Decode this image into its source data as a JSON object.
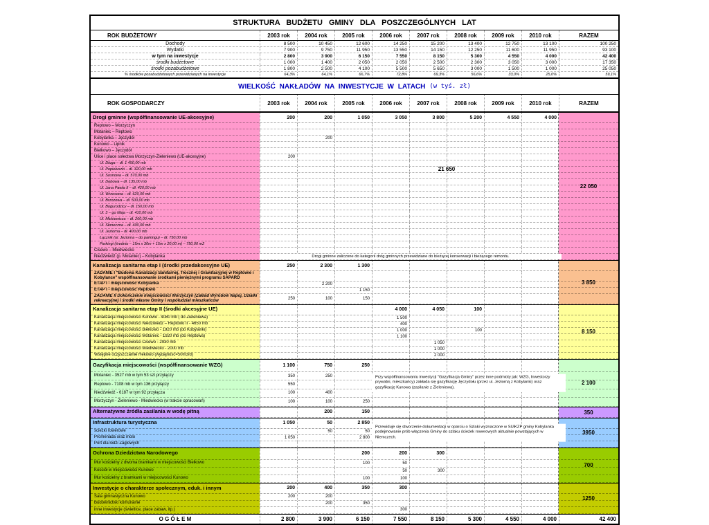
{
  "page_title": "STRUKTURA BUDŻETU GMINY DLA POSZCZEGÓLNYCH LAT",
  "investments_title": "WIELKOŚĆ NAKŁADÓW NA INWESTYCJE W LATACH",
  "investments_title_suffix": "(w tyś. zł)",
  "colors": {
    "investments_title": "#0000bb",
    "drogi": "#ff99cc",
    "kanalizacja_1": "#fac090",
    "kanalizacja_2": "#ffff99",
    "gazyfikacja": "#ccffcc",
    "woda": "#cc99ff",
    "turystyka": "#99ccff",
    "dziedzictwo": "#99cc00",
    "spoleczne": "#c3cc00"
  },
  "years": [
    "2003 rok",
    "2004 rok",
    "2005 rok",
    "2006 rok",
    "2007 rok",
    "2008 rok",
    "2009 rok",
    "2010 rok"
  ],
  "razem_label": "RAZEM",
  "gospodarczy_label": "ROK GOSPODARCZY",
  "budget": {
    "header_label": "ROK BUDŻETOWY",
    "rows": [
      {
        "label": "Dochody",
        "style": "plain",
        "values": [
          "8 500",
          "10 450",
          "12 600",
          "14 250",
          "15 200",
          "13 400",
          "12 750",
          "13 100"
        ],
        "razem": "100 250"
      },
      {
        "label": "Wydatki",
        "style": "plain",
        "values": [
          "7 900",
          "9 750",
          "11 950",
          "13 550",
          "14 150",
          "12 250",
          "11 600",
          "11 950"
        ],
        "razem": "93 100"
      },
      {
        "label": "w tym na inwestycje",
        "style": "bold",
        "values": [
          "2 800",
          "3 900",
          "6 150",
          "7 550",
          "8 150",
          "5 300",
          "4 550",
          "4 000"
        ],
        "razem": "42 400"
      },
      {
        "label": "środki budżetowe",
        "style": "italic",
        "values": [
          "1 000",
          "1 400",
          "2 050",
          "2 050",
          "2 500",
          "2 300",
          "3 050",
          "3 000"
        ],
        "razem": "17 350"
      },
      {
        "label": "środki pozabudżetowe",
        "style": "italic",
        "values": [
          "1 800",
          "2 500",
          "4 100",
          "5 500",
          "5 650",
          "3 000",
          "1 500",
          "1 000"
        ],
        "razem": "25 050"
      },
      {
        "label": "% środków pozabudżetowych przewidzianych na inwestycje",
        "style": "small-italic",
        "values": [
          "64,3%",
          "64,1%",
          "66,7%",
          "72,8%",
          "69,3%",
          "56,6%",
          "33,0%",
          "25,0%"
        ],
        "razem": "59,1%"
      }
    ]
  },
  "sections": [
    {
      "id": "drogi",
      "color": "#ff99cc",
      "header": {
        "label": "Drogi gminne (współfinansowanie UE-akcesyjne)",
        "values": [
          "200",
          "200",
          "1 050",
          "3 050",
          "3 800",
          "5 200",
          "4 550",
          "4 000"
        ]
      },
      "razem": "22 050",
      "rows": [
        {
          "label": "Reptowo – Morzyczyn",
          "style": "road",
          "values": [
            "",
            "",
            "",
            "",
            "",
            "",
            "",
            ""
          ]
        },
        {
          "label": "Motaniec – Reptowo",
          "style": "road",
          "values": [
            "",
            "",
            "",
            "",
            "",
            "",
            "",
            ""
          ]
        },
        {
          "label": "Kobylanka – Jęczydół",
          "style": "road",
          "values": [
            "",
            "200",
            "",
            "",
            "",
            "",
            "",
            ""
          ]
        },
        {
          "label": "Kunowo – Lipnik",
          "style": "road",
          "values": [
            "",
            "",
            "",
            "",
            "",
            "",
            "",
            ""
          ]
        },
        {
          "label": "Bielkowo – Jęczydół",
          "style": "road",
          "values": [
            "",
            "",
            "",
            "",
            "",
            "",
            "",
            ""
          ]
        },
        {
          "label": "Ulice i place sołectwa Morzyczyn-Zieleniewo (UE-akcesyjne)",
          "style": "road",
          "values": [
            "200",
            "",
            "",
            "",
            "",
            "",
            "",
            ""
          ]
        },
        {
          "label": "Ul. Długa – dł. 1 450,00 mb",
          "style": "street",
          "values": [
            "",
            "",
            "",
            "",
            "",
            "",
            "",
            ""
          ]
        },
        {
          "label": "Ul. Popiełuszki – dł. 320,00 mb",
          "style": "street",
          "values": [
            "",
            "",
            "",
            "",
            "",
            "",
            "",
            ""
          ]
        },
        {
          "label": "Ul. Sosnowa – dł. 570,00 mb",
          "style": "street",
          "values": [
            "",
            "",
            "",
            "",
            "",
            "",
            "",
            ""
          ]
        },
        {
          "label": "Ul. Dębowa – dł. 135,00 mb",
          "style": "street",
          "values": [
            "",
            "",
            "",
            "",
            "",
            "",
            "",
            ""
          ]
        },
        {
          "label": "Ul. Jana Pawła II – dł. 420,00 mb",
          "style": "street",
          "values": [
            "",
            "",
            "",
            "",
            "",
            "",
            "",
            ""
          ]
        },
        {
          "label": "Ul. Wrzosowa – dł. 620,00 mb",
          "style": "street",
          "values": [
            "",
            "",
            "",
            "",
            "",
            "",
            "",
            ""
          ]
        },
        {
          "label": "Ul. Brzozowa – dł. 500,00 mb",
          "style": "street",
          "values": [
            "",
            "",
            "",
            "",
            "",
            "",
            "",
            ""
          ]
        },
        {
          "label": "Ul. Bogurodzicy – dł. 150,00 mb",
          "style": "street",
          "values": [
            "",
            "",
            "",
            "",
            "",
            "",
            "",
            ""
          ]
        },
        {
          "label": "Ul. 3 – go Maja – dł. 410,00 mb",
          "style": "street",
          "values": [
            "",
            "",
            "",
            "",
            "",
            "",
            "",
            ""
          ]
        },
        {
          "label": "Ul. Mickiewicza – dł. 260,00 mb",
          "style": "street",
          "values": [
            "",
            "",
            "",
            "",
            "",
            "",
            "",
            ""
          ]
        },
        {
          "label": "Ul. Słoneczna – dł. 400,00 mb",
          "style": "street",
          "values": [
            "",
            "",
            "",
            "",
            "",
            "",
            "",
            ""
          ]
        },
        {
          "label": "Ul. Jeziorna – dł. 400,00 mb",
          "style": "street",
          "values": [
            "",
            "",
            "",
            "",
            "",
            "",
            "",
            ""
          ]
        },
        {
          "label": "Łącznik (ul. Jeziorna – do parkingu) – dł. 750,00 mb",
          "style": "street",
          "values": [
            "",
            "",
            "",
            "",
            "",
            "",
            "",
            ""
          ]
        },
        {
          "label": "Parkingi (średnio – 15m x 30m + 15m x 20,00 m) – 750,00 m2",
          "style": "street",
          "values": [
            "",
            "",
            "",
            "",
            "",
            "",
            "",
            ""
          ]
        },
        {
          "label": "Cisewo – Miedwiecko",
          "style": "road",
          "values": [
            "",
            "",
            "",
            "",
            "",
            "",
            "",
            ""
          ]
        },
        {
          "label": "Niedźwiedź (p. Motaniec) – Kobylanka",
          "style": "road",
          "values": [
            "",
            "",
            "",
            "",
            "",
            "",
            "",
            ""
          ]
        }
      ],
      "overlays": [
        {
          "kind": "big",
          "text": "21 650",
          "col": 2,
          "span": 6
        },
        {
          "kind": "note-bottom",
          "text": "Drogi gminne zaliczone do kategorii dróg gminnych przewidziane do bieżącej konserwacji i bieżącego remontu.",
          "col": 0,
          "span": 8
        }
      ]
    },
    {
      "id": "kan1",
      "color": "#fac090",
      "header": {
        "label": "Kanalizacja sanitarna etap I (środki przedakcesyjne UE)",
        "values": [
          "250",
          "2 300",
          "1 300",
          "",
          "",
          "",
          "",
          ""
        ]
      },
      "razem": "3 850",
      "rows": [
        {
          "label": "ZADANIE I \"Budowa Kanalizacji Sanitarnej, Tłocznej i Grawitacyjnej w Reptowie i Kobylance\" współfinansowanie środkami pieniężnymi programu SAPARD",
          "style": "bold",
          "values": [
            "",
            "",
            "",
            "",
            "",
            "",
            "",
            ""
          ]
        },
        {
          "label": "ETAP I - miejscowość Kobylanka",
          "style": "bold",
          "values": [
            "",
            "2 200",
            "",
            "",
            "",
            "",
            "",
            ""
          ]
        },
        {
          "label": "ETAP I - miejscowość Reptowo",
          "style": "bold",
          "values": [
            "",
            "",
            "1 150",
            "",
            "",
            "",
            "",
            ""
          ]
        },
        {
          "label": "ZADANIE II Dokończenie miejscowości Morzyczyn (Zakład Wyrobów Napoj, Działki rekreacyjne) i środki własne Gminy i współudział mieszkańców",
          "style": "bold-italic",
          "values": [
            "250",
            "100",
            "150",
            "",
            "",
            "",
            "",
            ""
          ]
        }
      ],
      "overlays": []
    },
    {
      "id": "kan2",
      "color": "#ffff99",
      "header": {
        "label": "Kanalizacja sanitarna etap II (środki akcesyjne UE)",
        "values": [
          "",
          "",
          "",
          "4 000",
          "4 050",
          "100",
          "",
          ""
        ]
      },
      "razem": "8 150",
      "rows": [
        {
          "label": "Kanalizacja miejscowości Kunowo - 4080 mb ( do Zieleniewa)",
          "style": "plain",
          "values": [
            "",
            "",
            "",
            "1 500",
            "",
            "",
            "",
            ""
          ]
        },
        {
          "label": "Kanalizacja miejscowości Niedźwiedź – Reptowo II - 4650 mb",
          "style": "plain",
          "values": [
            "",
            "",
            "",
            "400",
            "",
            "",
            "",
            ""
          ]
        },
        {
          "label": "Kanalizacja miejscowości Bielkowo - 1920 mb (do Kobylanki)",
          "style": "plain",
          "values": [
            "",
            "",
            "",
            "1 000",
            "",
            "100",
            "",
            ""
          ]
        },
        {
          "label": "Kanalizacja miejscowości Motaniec - 1920 mb (do Reptowa)",
          "style": "plain",
          "values": [
            "",
            "",
            "",
            "1 100",
            "",
            "",
            "",
            ""
          ]
        },
        {
          "label": "Kanalizacja miejscowości Cisewo - 2930 mb",
          "style": "plain",
          "values": [
            "",
            "",
            "",
            "",
            "1 050",
            "",
            "",
            ""
          ]
        },
        {
          "label": "Kanalizacja miejscowości Miedwiecko - 2000 mb",
          "style": "plain",
          "values": [
            "",
            "",
            "",
            "",
            "1 000",
            "",
            "",
            ""
          ]
        },
        {
          "label": "Wstępne oczyszczalnie Rekowo (wydajność=50m3/d)",
          "style": "plain",
          "values": [
            "",
            "",
            "",
            "",
            "2 000",
            "",
            "",
            ""
          ]
        }
      ],
      "overlays": []
    },
    {
      "id": "gaz",
      "color": "#ccffcc",
      "header": {
        "label": "Gazyfikacja miejscowości (współfinansowanie WZG)",
        "values": [
          "1 100",
          "750",
          "250",
          "",
          "",
          "",
          "",
          ""
        ]
      },
      "razem": "2 100",
      "rows": [
        {
          "label": "Motaniec - 3527 mb w tym 53 szt przyłączy",
          "style": "plain",
          "values": [
            "350",
            "250",
            "",
            "",
            "",
            "",
            "",
            ""
          ]
        },
        {
          "label": "Reptowo - 7108 mb w tym 136 przyłączy",
          "style": "plain",
          "values": [
            "550",
            "",
            "",
            "",
            "",
            "",
            "",
            ""
          ]
        },
        {
          "label": "Niedźwiedź - 6187 w tym 92 przyłącza",
          "style": "plain",
          "values": [
            "100",
            "400",
            "",
            "",
            "",
            "",
            "",
            ""
          ]
        },
        {
          "label": "Morzyczyn - Zieleniewo - Miedwiecko (w trakcie opracowań)",
          "style": "plain",
          "values": [
            "100",
            "100",
            "250",
            "",
            "",
            "",
            "",
            ""
          ]
        }
      ],
      "overlays": [
        {
          "kind": "note-middle",
          "text": "Przy współfinansowaniu inwestycji \"Gazyfikacja Gminy\" przez inne podmioty jak: WZG, Inwestorzy prywatni, mieszkańcy) zakłada się gazyfikację Jęczydołu (przez ul. Jeziorną z Kobylanki) oraz gazyfikację Kunowa (zasilanie z Zieleniewa).",
          "col": 3,
          "span": 5
        }
      ]
    },
    {
      "id": "woda",
      "color": "#cc99ff",
      "header": {
        "label": "Alternatywne źródła zasilania w wodę pitną",
        "values": [
          "",
          "200",
          "150",
          "",
          "",
          "",
          "",
          ""
        ]
      },
      "razem": "350",
      "rows": [],
      "overlays": []
    },
    {
      "id": "tur",
      "color": "#99ccff",
      "header": {
        "label": "Infrastruktura turystyczna",
        "values": [
          "1 050",
          "50",
          "2 850",
          "",
          "",
          "",
          "",
          ""
        ]
      },
      "razem": "3950",
      "rows": [
        {
          "label": "ścieżki rowerowe",
          "style": "plain",
          "values": [
            "",
            "50",
            "50",
            "",
            "",
            "",
            "",
            ""
          ]
        },
        {
          "label": "Promenada oraz molo",
          "style": "plain",
          "values": [
            "1 050",
            "",
            "2 800",
            "",
            "",
            "",
            "",
            ""
          ]
        },
        {
          "label": "Port dla łodzi Żaglowych",
          "style": "plain",
          "values": [
            "",
            "",
            "",
            "",
            "",
            "",
            "",
            ""
          ]
        }
      ],
      "overlays": [
        {
          "kind": "note-middle",
          "text": "Przewiduje się stworzenie dokumentacji w oparciu o Szlaki wyznaczone w SUiKZP gminy Kobylanka podejmowanie prób włączenia Gminy do szlaku ścieżek rowerowych aktualnie powstających w Niemczech.",
          "col": 3,
          "span": 5
        }
      ]
    },
    {
      "id": "dziedzictwo",
      "color": "#99cc00",
      "header": {
        "label": "Ochrona Dziedzictwa Narodowego",
        "values": [
          "",
          "",
          "200",
          "200",
          "300",
          "",
          "",
          ""
        ]
      },
      "razem": "700",
      "rows": [
        {
          "label": "Mur kościelny z dwoma bramkami w miejscowości Bielkowo",
          "style": "plain",
          "values": [
            "",
            "",
            "100",
            "50",
            "",
            "",
            "",
            ""
          ]
        },
        {
          "label": "Kościół w miejscowości Kunowo",
          "style": "plain",
          "values": [
            "",
            "",
            "",
            "50",
            "300",
            "",
            "",
            ""
          ]
        },
        {
          "label": "Mur kościelny z bramkami w miejscowości Kunowo",
          "style": "plain",
          "values": [
            "",
            "",
            "100",
            "100",
            "",
            "",
            "",
            ""
          ]
        }
      ],
      "overlays": []
    },
    {
      "id": "spol",
      "color": "#c3cc00",
      "header": {
        "label": "Inwestycje o charakterze społecznym, eduk. i innym",
        "values": [
          "200",
          "400",
          "350",
          "300",
          "",
          "",
          "",
          ""
        ]
      },
      "razem": "1250",
      "rows": [
        {
          "label": "Sala gimnastyczna Kunowo",
          "style": "plain",
          "values": [
            "200",
            "200",
            "",
            "",
            "",
            "",
            "",
            ""
          ]
        },
        {
          "label": "Budownictwo komunalne",
          "style": "plain",
          "values": [
            "",
            "200",
            "350",
            "",
            "",
            "",
            "",
            ""
          ]
        },
        {
          "label": "inne inwestycje (świetlice, place zabaw, itp.)",
          "style": "plain",
          "values": [
            "",
            "",
            "",
            "300",
            "",
            "",
            "",
            ""
          ]
        }
      ],
      "overlays": []
    }
  ],
  "total_row": {
    "label": "O G Ó Ł E M",
    "values": [
      "2 800",
      "3 900",
      "6 150",
      "7 550",
      "8 150",
      "5 300",
      "4 550",
      "4 000"
    ],
    "razem": "42 400"
  }
}
